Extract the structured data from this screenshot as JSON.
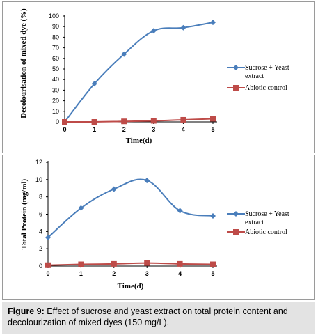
{
  "chart_data": [
    {
      "type": "line",
      "x": [
        0,
        1,
        2,
        3,
        4,
        5
      ],
      "xlabel": "Time(d)",
      "ylabel": "Decolourisation of mixed dye (%)",
      "ylim": [
        0,
        100
      ],
      "yticks": [
        0,
        10,
        20,
        30,
        40,
        50,
        60,
        70,
        80,
        90,
        100
      ],
      "xticks": [
        "0",
        "1",
        "2",
        "3",
        "4",
        "5"
      ],
      "legend_position": "right",
      "series": [
        {
          "name": "Sucrose + Yeast extract",
          "legend_lines": [
            "Sucrose + Yeast",
            "extract"
          ],
          "color": "#4a7ebb",
          "marker": "diamond",
          "values": [
            0,
            36,
            64,
            86,
            89,
            94
          ]
        },
        {
          "name": "Abiotic control",
          "legend_lines": [
            "Abiotic control"
          ],
          "color": "#be4b48",
          "marker": "square",
          "values": [
            0,
            0,
            0.5,
            1,
            2,
            3
          ]
        }
      ]
    },
    {
      "type": "line",
      "x": [
        0,
        1,
        2,
        3,
        4,
        5
      ],
      "xlabel": "Time(d)",
      "ylabel": "Total Protein (mg/ml)",
      "ylim": [
        0,
        12
      ],
      "yticks": [
        0,
        2,
        4,
        6,
        8,
        10,
        12
      ],
      "xticks": [
        "0",
        "1",
        "2",
        "3",
        "4",
        "5"
      ],
      "legend_position": "right",
      "series": [
        {
          "name": "Sucrose + Yeast extract",
          "legend_lines": [
            "Sucrose + Yeast",
            "extract"
          ],
          "color": "#4a7ebb",
          "marker": "diamond",
          "values": [
            3.3,
            6.7,
            8.9,
            9.9,
            6.4,
            5.8
          ]
        },
        {
          "name": "Abiotic control",
          "legend_lines": [
            "Abiotic control"
          ],
          "color": "#be4b48",
          "marker": "square",
          "values": [
            0.1,
            0.2,
            0.25,
            0.35,
            0.25,
            0.2
          ]
        }
      ]
    }
  ],
  "caption": {
    "label": "Figure 9:",
    "text": " Effect of sucrose and yeast extract on total protein content and decolourization of mixed dyes (150 mg/L)."
  }
}
